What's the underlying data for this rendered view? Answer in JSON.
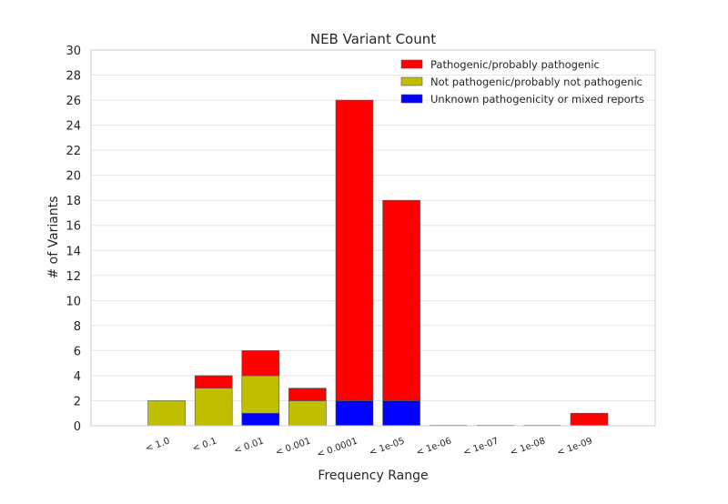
{
  "chart_data": {
    "type": "bar",
    "stacked": true,
    "title": "NEB Variant Count",
    "xlabel": "Frequency Range",
    "ylabel": "# of Variants",
    "categories": [
      "",
      "< 1.0",
      "< 0.1",
      "< 0.01",
      "< 0.001",
      "< 0.0001",
      "< 1e-05",
      "< 1e-06",
      "< 1e-07",
      "< 1e-08",
      "< 1e-09"
    ],
    "ylim": [
      0,
      30
    ],
    "yticks": [
      0,
      2,
      4,
      6,
      8,
      10,
      12,
      14,
      16,
      18,
      20,
      22,
      24,
      26,
      28,
      30
    ],
    "grid": true,
    "legend_position": "top-right",
    "series": [
      {
        "name": "Unknown pathogenicity or mixed reports",
        "color": "#0000ff",
        "values": [
          0,
          0,
          0,
          1,
          0,
          2,
          2,
          0,
          0,
          0,
          0
        ]
      },
      {
        "name": "Not pathogenic/probably not pathogenic",
        "color": "#bfbf00",
        "values": [
          0,
          2,
          3,
          3,
          2,
          0,
          0,
          0,
          0,
          0,
          0
        ]
      },
      {
        "name": "Pathogenic/probably pathogenic",
        "color": "#ff0000",
        "values": [
          0,
          0,
          1,
          2,
          1,
          24,
          16,
          0,
          0,
          0,
          1
        ]
      }
    ],
    "legend_order": [
      2,
      1,
      0
    ]
  }
}
